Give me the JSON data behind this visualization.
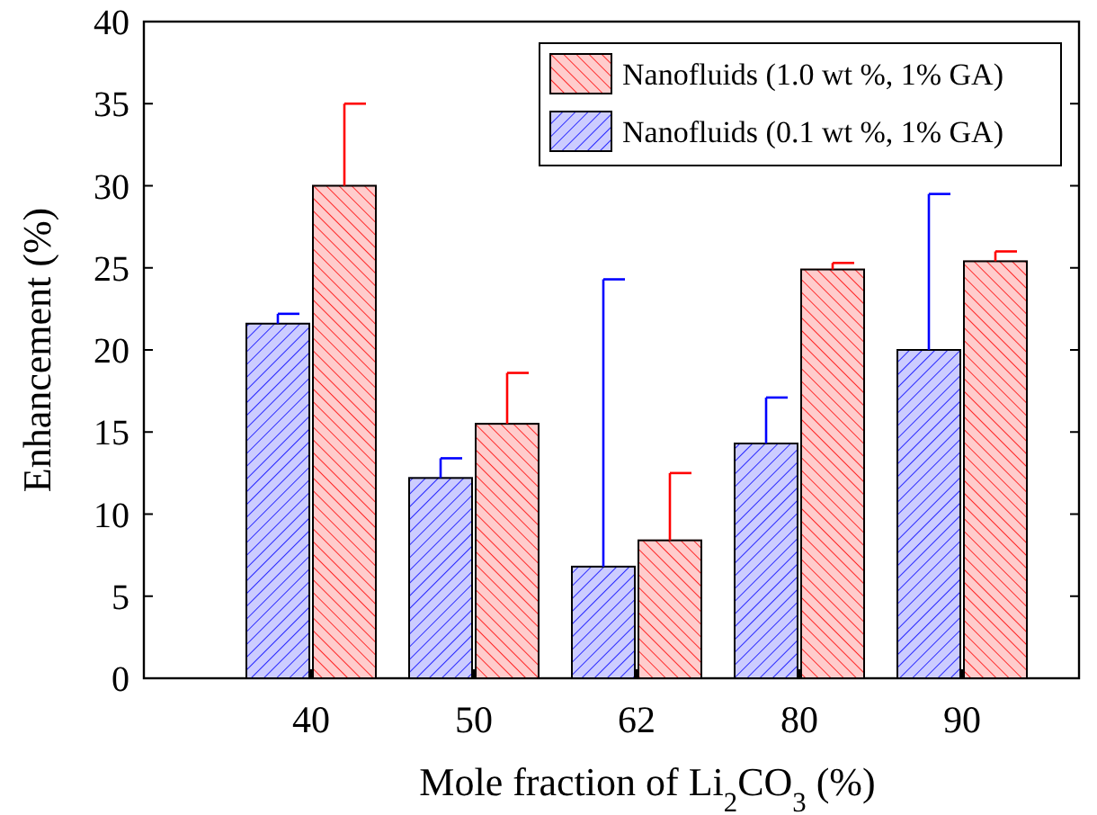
{
  "chart_data": {
    "type": "bar",
    "xlabel": "Mole fraction of Li$_{2}$CO$_{3}$ (%)",
    "ylabel": "Enhancement (%)",
    "categories": [
      "40",
      "50",
      "62",
      "80",
      "90"
    ],
    "ylim": [
      0,
      40
    ],
    "yticks": [
      0,
      5,
      10,
      15,
      20,
      25,
      30,
      35,
      40
    ],
    "grid": false,
    "legend": "top right",
    "series": [
      {
        "name": "Nanofluids (0.1 wt %, 1% GA)",
        "color": "#ccccff",
        "values": [
          21.6,
          12.2,
          6.8,
          14.3,
          20.0
        ],
        "errors": [
          [
            21.6,
            22.2
          ],
          [
            12.2,
            13.4
          ],
          [
            6.8,
            24.3
          ],
          [
            14.3,
            17.1
          ],
          [
            20.0,
            29.5
          ]
        ]
      },
      {
        "name": "Nanofluids (1.0 wt %, 1% GA)",
        "color": "#ffcccc",
        "values": [
          30.0,
          15.5,
          8.4,
          24.9,
          25.4
        ],
        "errors": [
          [
            30.0,
            35.0
          ],
          [
            15.5,
            18.6
          ],
          [
            8.4,
            12.5
          ],
          [
            24.9,
            25.3
          ],
          [
            25.4,
            26.0
          ]
        ]
      }
    ]
  }
}
